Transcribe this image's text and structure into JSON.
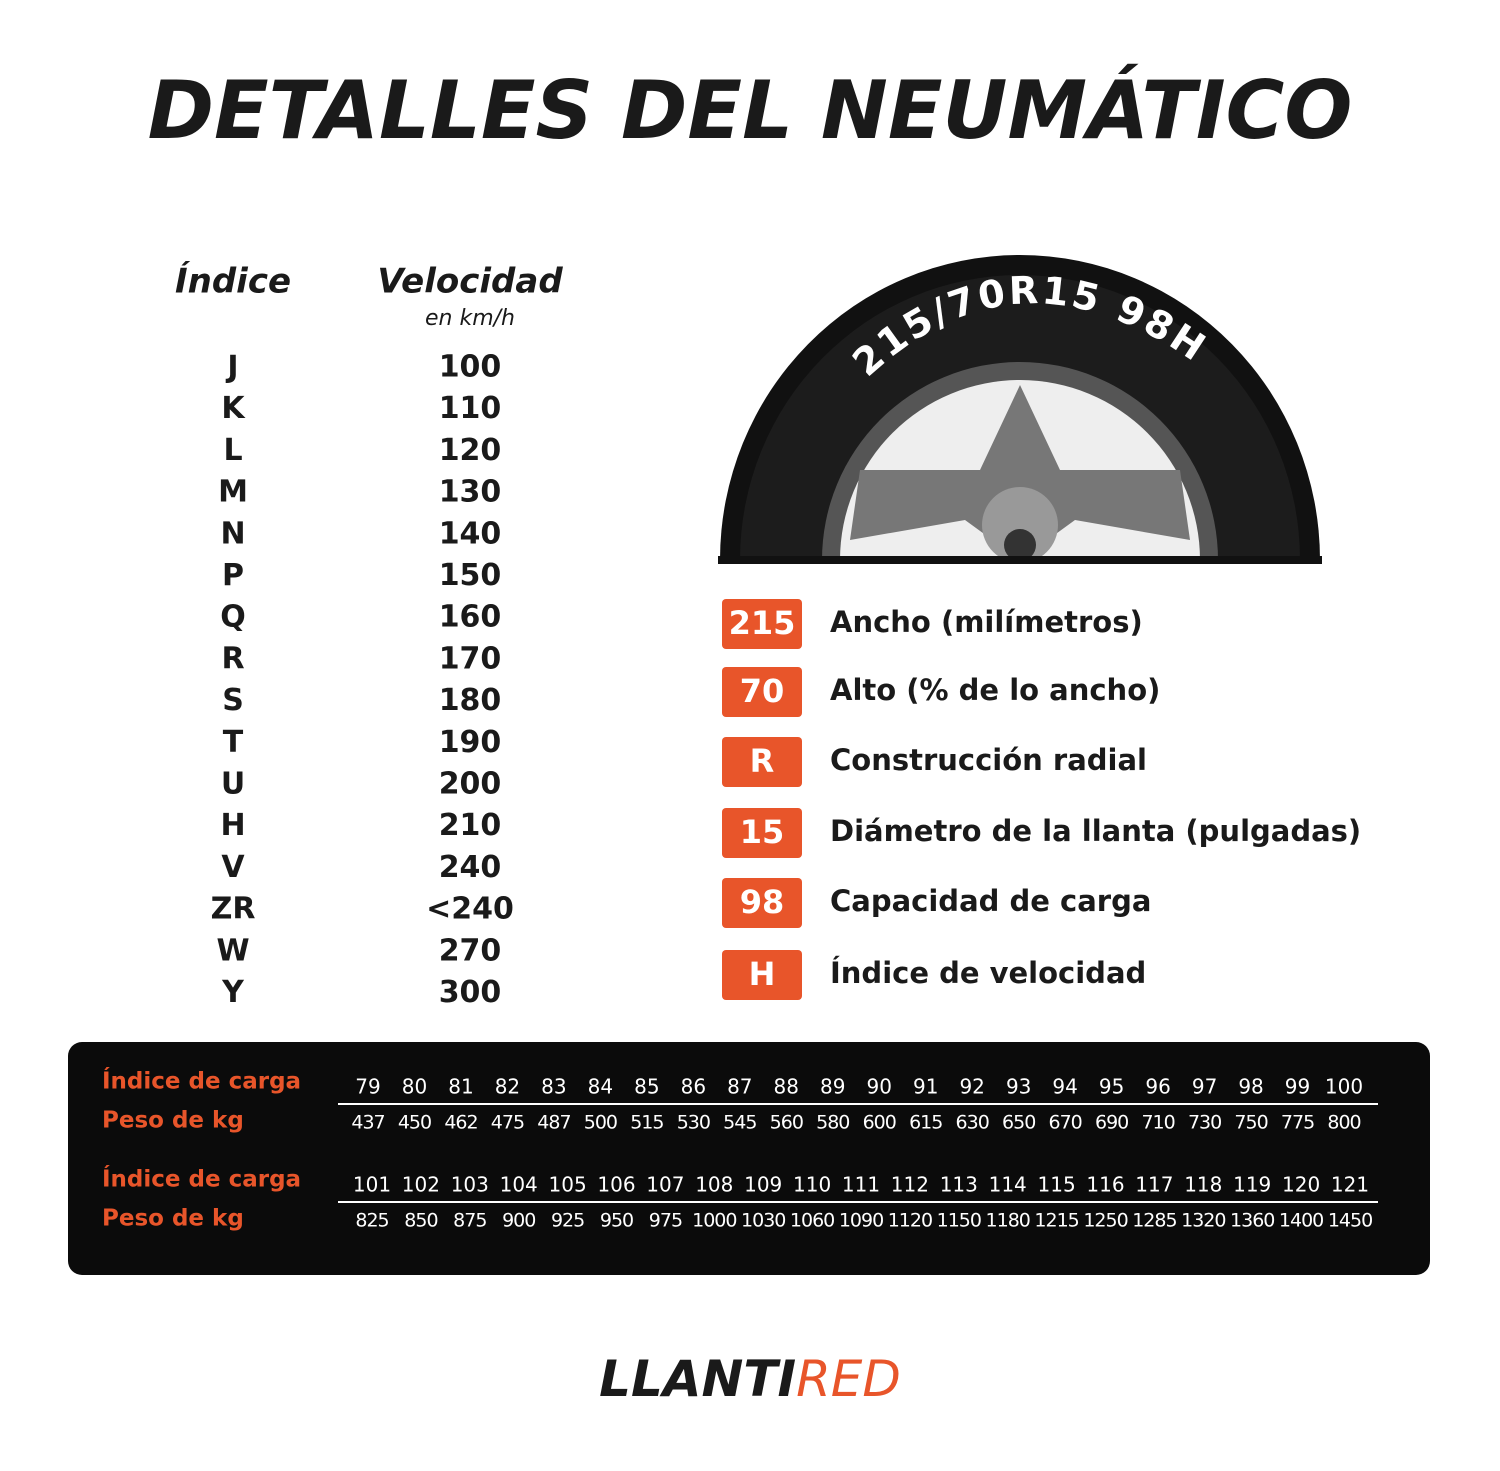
{
  "title": "DETALLES DEL NEUMÁTICO",
  "speed_table": {
    "headers": [
      "Índice",
      "Velocidad"
    ],
    "unit": "en km/h",
    "rows": [
      [
        "J",
        100
      ],
      [
        "K",
        110
      ],
      [
        "L",
        120
      ],
      [
        "M",
        130
      ],
      [
        "N",
        140
      ],
      [
        "P",
        150
      ],
      [
        "Q",
        160
      ],
      [
        "R",
        170
      ],
      [
        "S",
        180
      ],
      [
        "T",
        190
      ],
      [
        "U",
        200
      ],
      [
        "H",
        210
      ],
      [
        "V",
        240
      ],
      [
        "ZR",
        "<240"
      ],
      [
        "W",
        270
      ],
      [
        "Y",
        300
      ]
    ]
  },
  "tire": {
    "sidewall": "215/70R15 98H"
  },
  "legend": [
    {
      "code": "215",
      "label": "Ancho (milímetros)"
    },
    {
      "code": "70",
      "label": "Alto (% de lo ancho)"
    },
    {
      "code": "R",
      "label": "Construcción radial"
    },
    {
      "code": "15",
      "label": "Diámetro de la llanta (pulgadas)"
    },
    {
      "code": "98",
      "label": "Capacidad de carga"
    },
    {
      "code": "H",
      "label": "Índice de velocidad"
    }
  ],
  "load_table": [
    {
      "index_label": "Índice de carga",
      "weight_label": "Peso de kg",
      "indices": [
        79,
        80,
        81,
        82,
        83,
        84,
        85,
        86,
        87,
        88,
        89,
        90,
        91,
        92,
        93,
        94,
        95,
        96,
        97,
        98,
        99,
        100
      ],
      "weights": [
        437,
        450,
        462,
        475,
        487,
        500,
        515,
        530,
        545,
        560,
        580,
        600,
        615,
        630,
        650,
        670,
        690,
        710,
        730,
        750,
        775,
        800
      ]
    },
    {
      "index_label": "Índice de carga",
      "weight_label": "Peso de kg",
      "indices": [
        101,
        102,
        103,
        104,
        105,
        106,
        107,
        108,
        109,
        110,
        111,
        112,
        113,
        114,
        115,
        116,
        117,
        118,
        119,
        120,
        121
      ],
      "weights": [
        825,
        850,
        875,
        900,
        925,
        950,
        975,
        1000,
        1030,
        1060,
        1090,
        1120,
        1150,
        1180,
        1215,
        1250,
        1285,
        1320,
        1360,
        1400,
        1450
      ]
    }
  ],
  "brand": {
    "part1": "LLANTI",
    "part2": "RED"
  }
}
